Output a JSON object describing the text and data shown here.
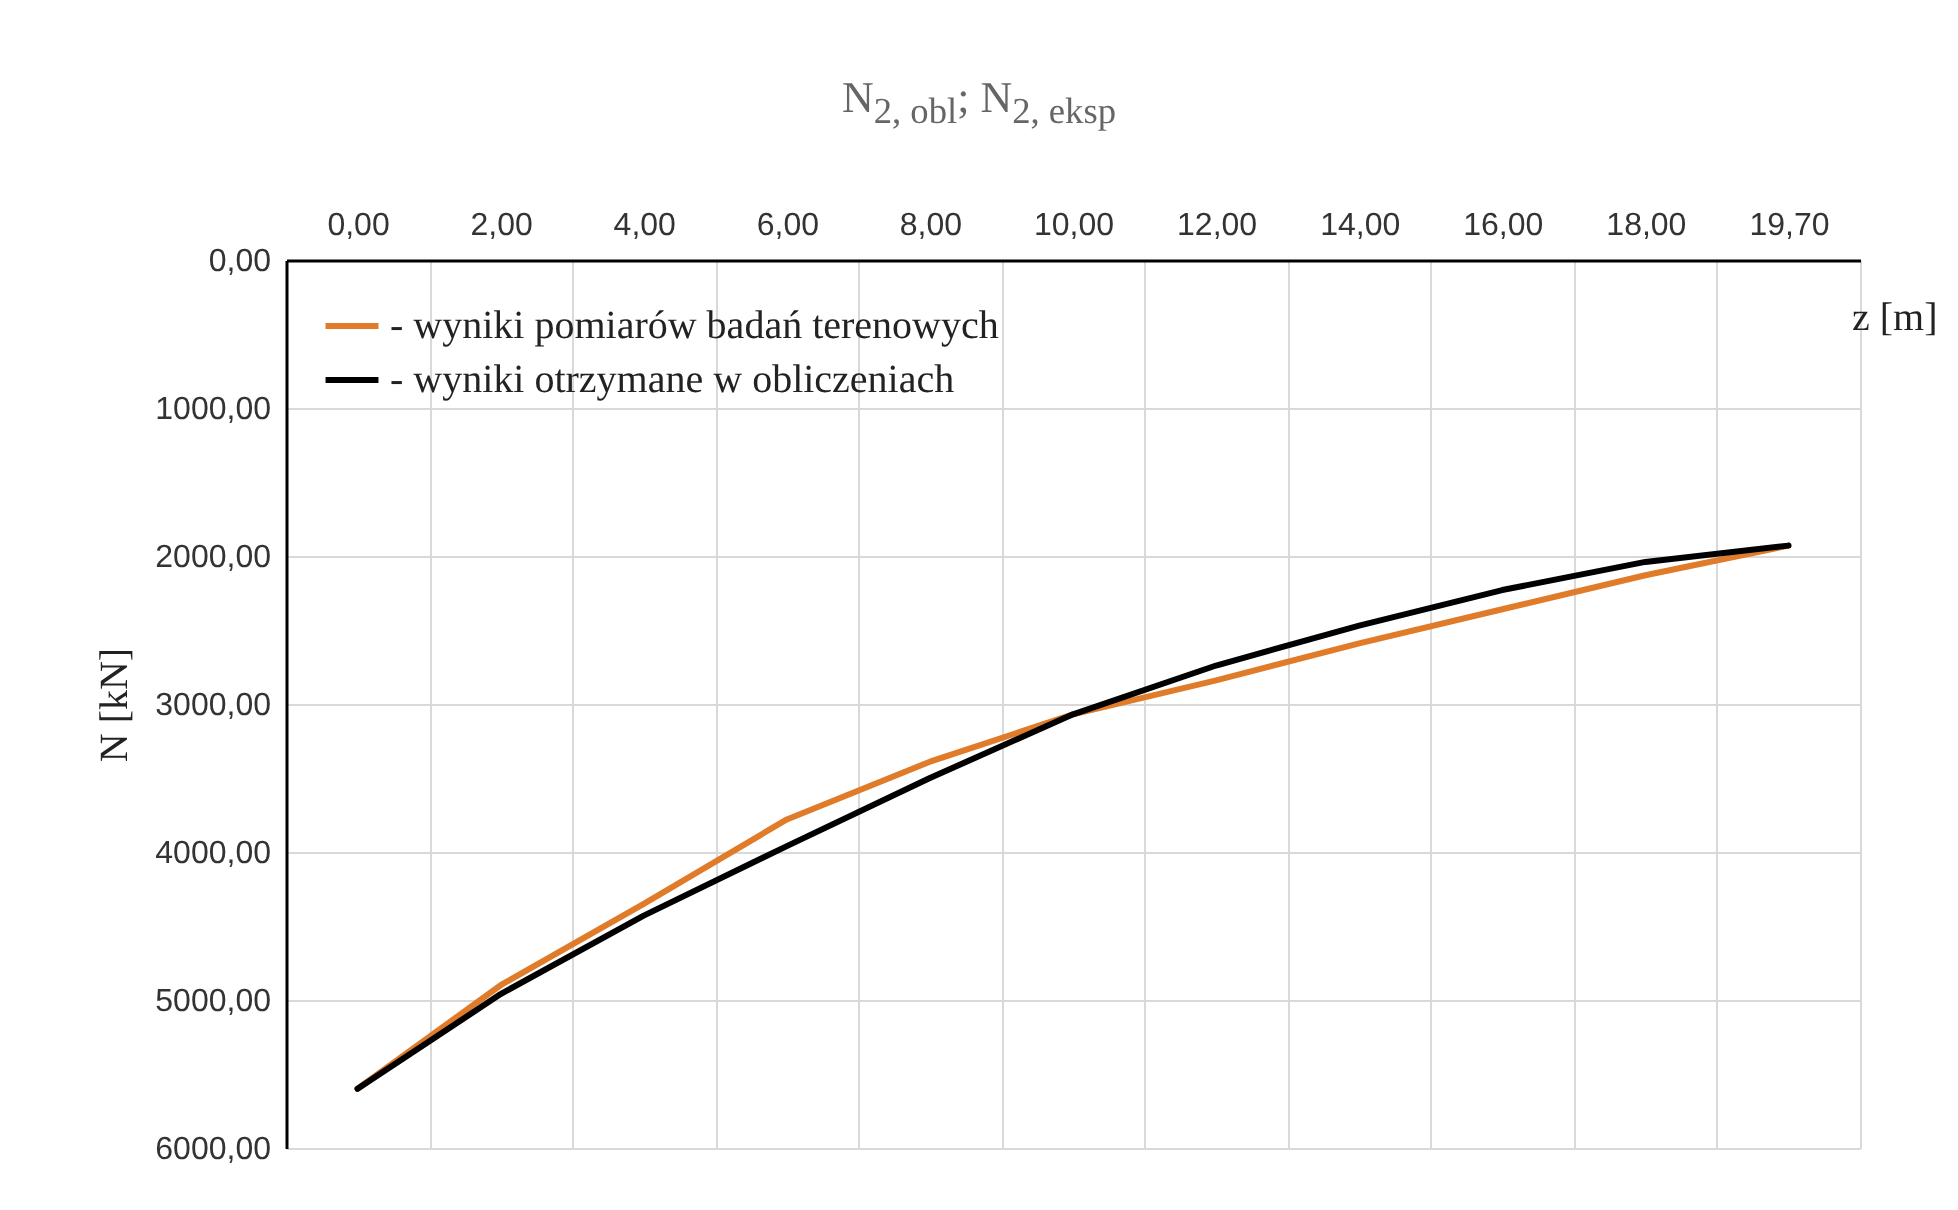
{
  "chart_data": {
    "type": "line",
    "title": "N$_{2, obl}$; N$_{2, eksp}$",
    "xlabel": "z [m]",
    "ylabel": "N [kN]",
    "categories": [
      "0,00",
      "2,00",
      "4,00",
      "6,00",
      "8,00",
      "10,00",
      "12,00",
      "14,00",
      "16,00",
      "18,00",
      "19,70"
    ],
    "series": [
      {
        "name": "- wyniki pomiarów badań terenowych",
        "color": "#e07b2a",
        "values": [
          5600,
          4900,
          4350,
          3780,
          3390,
          3070,
          2840,
          2590,
          2360,
          2130,
          1930
        ]
      },
      {
        "name": "- wyniki otrzymane w obliczeniach",
        "color": "#000000",
        "values": [
          5600,
          4960,
          4430,
          3960,
          3500,
          3070,
          2740,
          2470,
          2230,
          2040,
          1930
        ]
      }
    ],
    "ylim": [
      6000,
      0
    ],
    "yticks": [
      {
        "value": 0,
        "label": "0,00"
      },
      {
        "value": 1000,
        "label": "1000,00"
      },
      {
        "value": 2000,
        "label": "2000,00"
      },
      {
        "value": 3000,
        "label": "3000,00"
      },
      {
        "value": 4000,
        "label": "4000,00"
      },
      {
        "value": 5000,
        "label": "5000,00"
      },
      {
        "value": 6000,
        "label": "6000,00"
      }
    ],
    "grid": true,
    "legend": "top left",
    "marker": "none",
    "line_style": "solid"
  }
}
